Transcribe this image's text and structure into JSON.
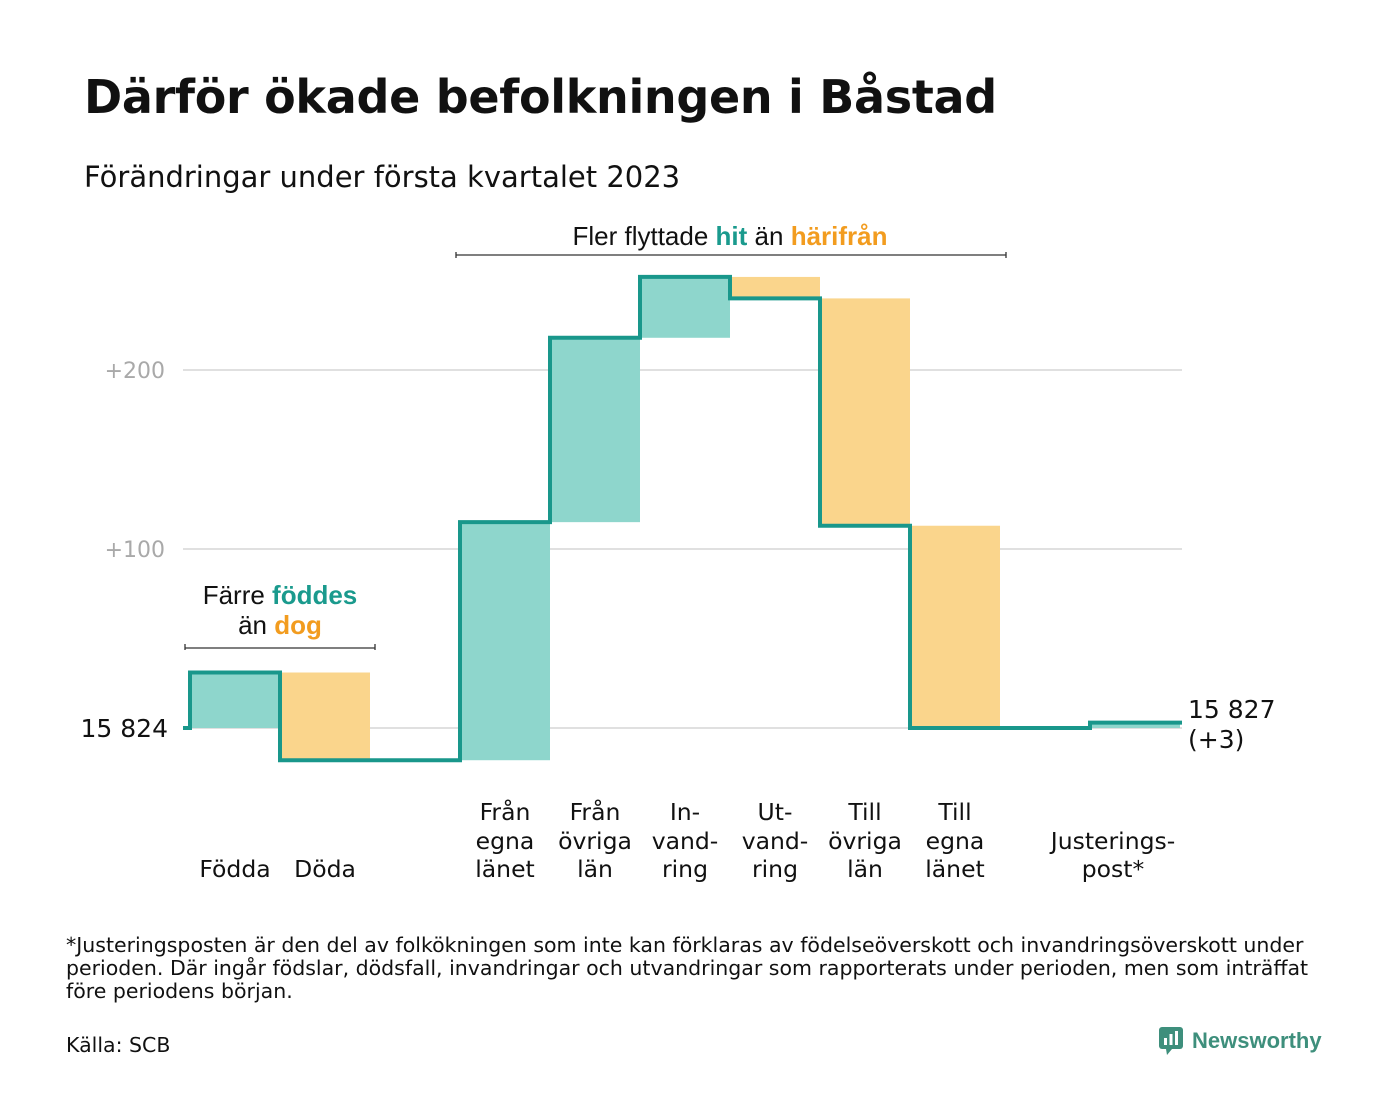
{
  "title": "Därför ökade befolkningen i Båstad",
  "subtitle": "Förändringar under första kvartalet 2023",
  "colors": {
    "inflow": "#8ed6cc",
    "outflow": "#fad58c",
    "line": "#19978b",
    "accent_teal": "#1a9a8d",
    "accent_orange": "#f29c1f",
    "grid": "#e0e0e0",
    "tick": "#a9a9a9"
  },
  "chart_data": {
    "type": "waterfall",
    "base_label": "15 824",
    "end_label": [
      "15 827",
      "(+3)"
    ],
    "y_ticks": [
      {
        "value": 100,
        "label": "+100"
      },
      {
        "value": 200,
        "label": "+200"
      }
    ],
    "steps": [
      {
        "label": [
          "",
          "",
          "Födda"
        ],
        "delta": 31,
        "kind": "in"
      },
      {
        "label": [
          "",
          "",
          "Döda"
        ],
        "delta": -49,
        "kind": "out"
      },
      {
        "label": null,
        "delta": 0,
        "kind": "gap"
      },
      {
        "label": [
          "Från",
          "egna",
          "länet"
        ],
        "delta": 133,
        "kind": "in"
      },
      {
        "label": [
          "Från",
          "övriga",
          "län"
        ],
        "delta": 103,
        "kind": "in"
      },
      {
        "label": [
          "In-",
          "vand-",
          "ring"
        ],
        "delta": 34,
        "kind": "in"
      },
      {
        "label": [
          "Ut-",
          "vand-",
          "ring"
        ],
        "delta": -12,
        "kind": "out"
      },
      {
        "label": [
          "Till",
          "övriga",
          "län"
        ],
        "delta": -127,
        "kind": "out"
      },
      {
        "label": [
          "Till",
          "egna",
          "länet"
        ],
        "delta": -113,
        "kind": "out"
      },
      {
        "label": null,
        "delta": 0,
        "kind": "gap"
      },
      {
        "label": [
          "",
          "Justerings-",
          "post*"
        ],
        "delta": 3,
        "kind": "in"
      }
    ],
    "annotations": [
      {
        "parts": [
          {
            "text": "Färre ",
            "color": ""
          },
          {
            "text": "föddes",
            "color": "teal"
          }
        ],
        "parts2": [
          {
            "text": "än ",
            "color": ""
          },
          {
            "text": "dog",
            "color": "orange"
          }
        ]
      },
      {
        "parts": [
          {
            "text": "Fler flyttade ",
            "color": ""
          },
          {
            "text": "hit",
            "color": "teal"
          },
          {
            "text": " än ",
            "color": ""
          },
          {
            "text": "härifrån",
            "color": "orange"
          }
        ]
      }
    ]
  },
  "footnote": "*Justeringsposten är den del av folkökningen som inte kan förklaras av födelseöverskott och invandringsöverskott under perioden. Där ingår födslar, dödsfall, invandringar och utvandringar som rapporterats under perioden, men som inträffat före periodens början.",
  "source": "Källa: SCB",
  "brand": "Newsworthy",
  "brand_icon": "newsworthy-logo-icon"
}
